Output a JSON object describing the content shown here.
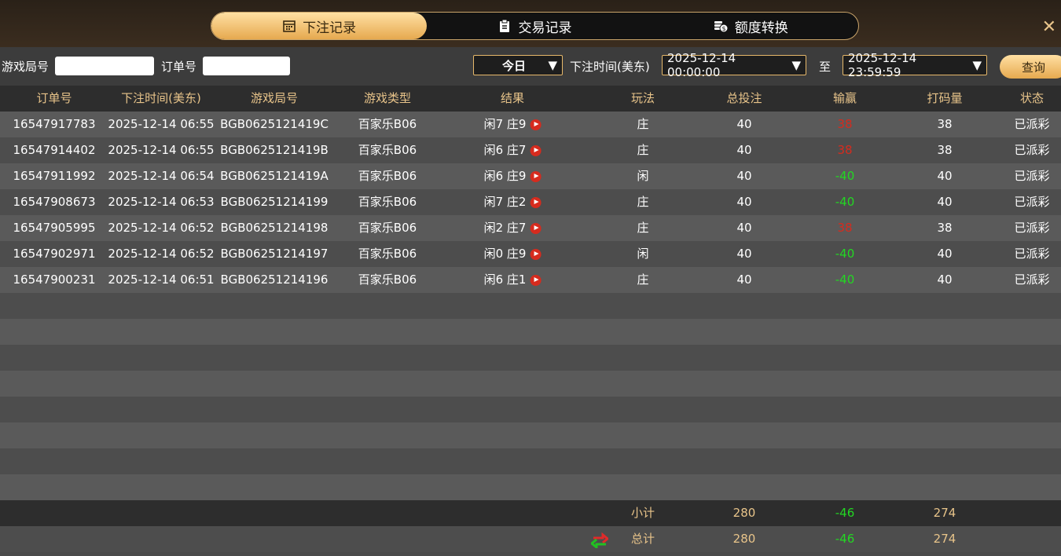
{
  "tabs": [
    "下注记录",
    "交易记录",
    "额度转换"
  ],
  "filters": {
    "game_round_label": "游戏局号",
    "order_label": "订单号",
    "period": "今日",
    "time_label": "下注时间(美东)",
    "start": "2025-12-14 00:00:00",
    "to": "至",
    "end": "2025-12-14 23:59:59",
    "query": "查询"
  },
  "table": {
    "headers": [
      "订单号",
      "下注时间(美东)",
      "游戏局号",
      "游戏类型",
      "结果",
      "玩法",
      "总投注",
      "输赢",
      "打码量",
      "状态"
    ],
    "rows": [
      [
        "16547917783",
        "2025-12-14 06:55",
        "BGB0625121419C",
        "百家乐B06",
        "闲7 庄9",
        "庄",
        40,
        38,
        38,
        "已派彩"
      ],
      [
        "16547914402",
        "2025-12-14 06:55",
        "BGB0625121419B",
        "百家乐B06",
        "闲6 庄7",
        "庄",
        40,
        38,
        38,
        "已派彩"
      ],
      [
        "16547911992",
        "2025-12-14 06:54",
        "BGB0625121419A",
        "百家乐B06",
        "闲6 庄9",
        "闲",
        40,
        -40,
        40,
        "已派彩"
      ],
      [
        "16547908673",
        "2025-12-14 06:53",
        "BGB06251214199",
        "百家乐B06",
        "闲7 庄2",
        "庄",
        40,
        -40,
        40,
        "已派彩"
      ],
      [
        "16547905995",
        "2025-12-14 06:52",
        "BGB06251214198",
        "百家乐B06",
        "闲2 庄7",
        "庄",
        40,
        38,
        38,
        "已派彩"
      ],
      [
        "16547902971",
        "2025-12-14 06:52",
        "BGB06251214197",
        "百家乐B06",
        "闲0 庄9",
        "闲",
        40,
        -40,
        40,
        "已派彩"
      ],
      [
        "16547900231",
        "2025-12-14 06:51",
        "BGB06251214196",
        "百家乐B06",
        "闲6 庄1",
        "庄",
        40,
        -40,
        40,
        "已派彩"
      ]
    ]
  },
  "subtotal": {
    "label": "小计",
    "total_bet": 280,
    "win_loss": -46,
    "turnover": 274
  },
  "total": {
    "label": "总计",
    "total_bet": 280,
    "win_loss": -46,
    "turnover": 274
  }
}
